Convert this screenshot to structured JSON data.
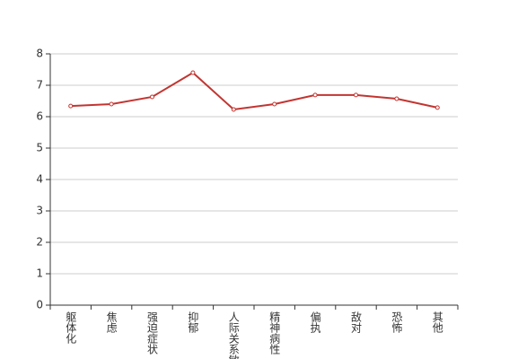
{
  "chart_data": {
    "type": "line",
    "categories": [
      "躯体化",
      "焦虑",
      "强迫症状",
      "抑郁",
      "人际关系敏感",
      "精神病性",
      "偏执",
      "敌对",
      "恐怖",
      "其他"
    ],
    "series": [
      {
        "color": "#c23531",
        "values": [
          6.34,
          6.4,
          6.63,
          7.4,
          6.23,
          6.4,
          6.69,
          6.69,
          6.57,
          6.29
        ]
      }
    ],
    "ylim": [
      0,
      8
    ],
    "yticks": [
      0,
      1,
      2,
      3,
      4,
      5,
      6,
      7,
      8
    ],
    "grid": true
  }
}
